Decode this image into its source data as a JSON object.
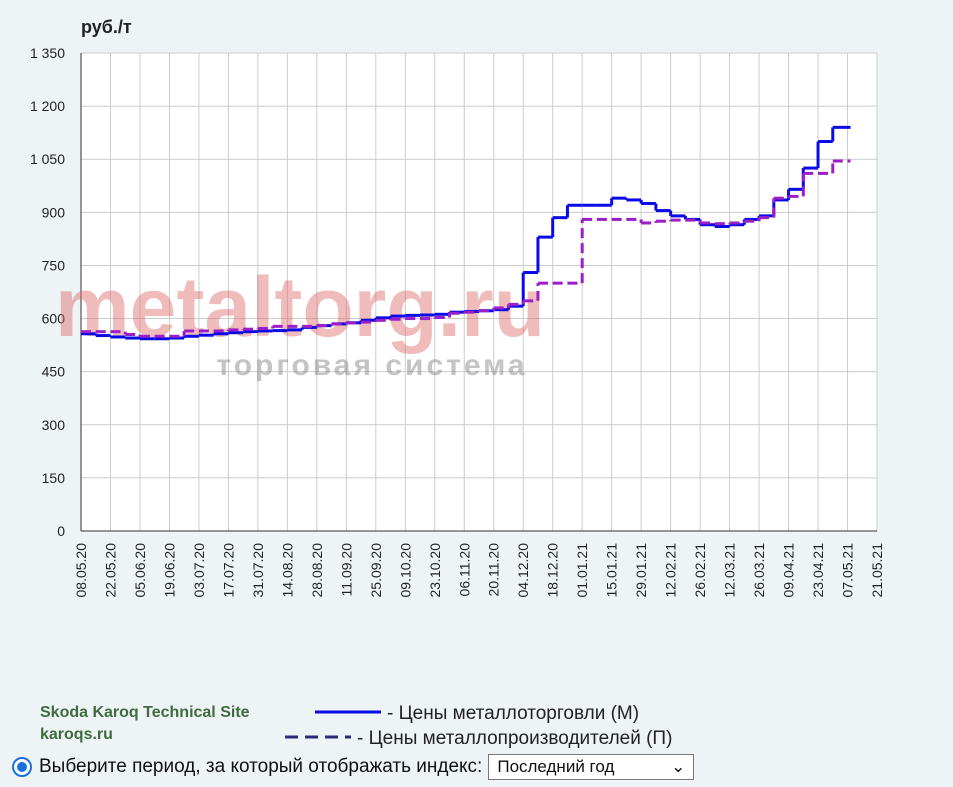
{
  "chart_data": {
    "type": "step-line",
    "y_label": "руб./т",
    "watermark": {
      "title": "metaltorg.ru",
      "subtitle": "торговая система"
    },
    "x": [
      "08.05.20",
      "15.05.20",
      "22.05.20",
      "29.05.20",
      "05.06.20",
      "12.06.20",
      "19.06.20",
      "26.06.20",
      "03.07.20",
      "10.07.20",
      "17.07.20",
      "24.07.20",
      "31.07.20",
      "07.08.20",
      "14.08.20",
      "21.08.20",
      "28.08.20",
      "04.09.20",
      "11.09.20",
      "18.09.20",
      "25.09.20",
      "02.10.20",
      "09.10.20",
      "16.10.20",
      "23.10.20",
      "30.10.20",
      "06.11.20",
      "13.11.20",
      "20.11.20",
      "27.11.20",
      "04.12.20",
      "11.12.20",
      "18.12.20",
      "25.12.20",
      "01.01.21",
      "08.01.21",
      "15.01.21",
      "22.01.21",
      "29.01.21",
      "05.02.21",
      "12.02.21",
      "19.02.21",
      "26.02.21",
      "05.03.21",
      "12.03.21",
      "19.03.21",
      "26.03.21",
      "02.04.21",
      "09.04.21",
      "16.04.21",
      "23.04.21",
      "30.04.21",
      "07.05.21"
    ],
    "series": [
      {
        "name": "- Цены металлоторговли (М)",
        "color": "#0a0ae6",
        "dash": false,
        "values": [
          557,
          552,
          548,
          545,
          543,
          543,
          545,
          550,
          553,
          557,
          560,
          563,
          565,
          566,
          568,
          575,
          580,
          585,
          588,
          595,
          602,
          607,
          609,
          610,
          612,
          618,
          620,
          622,
          625,
          635,
          730,
          830,
          885,
          920,
          920,
          920,
          940,
          935,
          925,
          905,
          890,
          880,
          865,
          860,
          865,
          880,
          890,
          935,
          965,
          1025,
          1100,
          1140,
          1140
        ]
      },
      {
        "name": "- Цены металлопроизводителей (П)",
        "color": "#9b1fc9",
        "dash": true,
        "values": [
          563,
          563,
          563,
          555,
          550,
          550,
          550,
          565,
          565,
          565,
          568,
          570,
          572,
          578,
          578,
          578,
          580,
          585,
          588,
          590,
          595,
          598,
          600,
          600,
          603,
          615,
          618,
          622,
          630,
          640,
          650,
          700,
          700,
          700,
          880,
          880,
          880,
          880,
          870,
          875,
          878,
          878,
          870,
          868,
          870,
          875,
          885,
          940,
          945,
          1010,
          1010,
          1045,
          1045
        ]
      }
    ],
    "xlim": [
      "08.05.20",
      "21.05.21"
    ],
    "xticks": [
      "08.05.20",
      "22.05.20",
      "05.06.20",
      "19.06.20",
      "03.07.20",
      "17.07.20",
      "31.07.20",
      "14.08.20",
      "28.08.20",
      "11.09.20",
      "25.09.20",
      "09.10.20",
      "23.10.20",
      "06.11.20",
      "20.11.20",
      "04.12.20",
      "18.12.20",
      "01.01.21",
      "15.01.21",
      "29.01.21",
      "12.02.21",
      "26.02.21",
      "12.03.21",
      "26.03.21",
      "09.04.21",
      "23.04.21",
      "07.05.21",
      "21.05.21"
    ],
    "ylim": [
      0,
      1350
    ],
    "yticks": [
      0,
      150,
      300,
      450,
      600,
      750,
      900,
      {
        "value": 1050,
        "label": "1 050"
      },
      {
        "value": 1200,
        "label": "1 200"
      },
      {
        "value": 1350,
        "label": "1 350"
      }
    ],
    "grid": true
  },
  "site": {
    "name": "Skoda Karoq Technical Site",
    "url": "karoqs.ru"
  },
  "period": {
    "label": "Выберите период, за который отображать индекс:",
    "selected": "Последний год"
  }
}
